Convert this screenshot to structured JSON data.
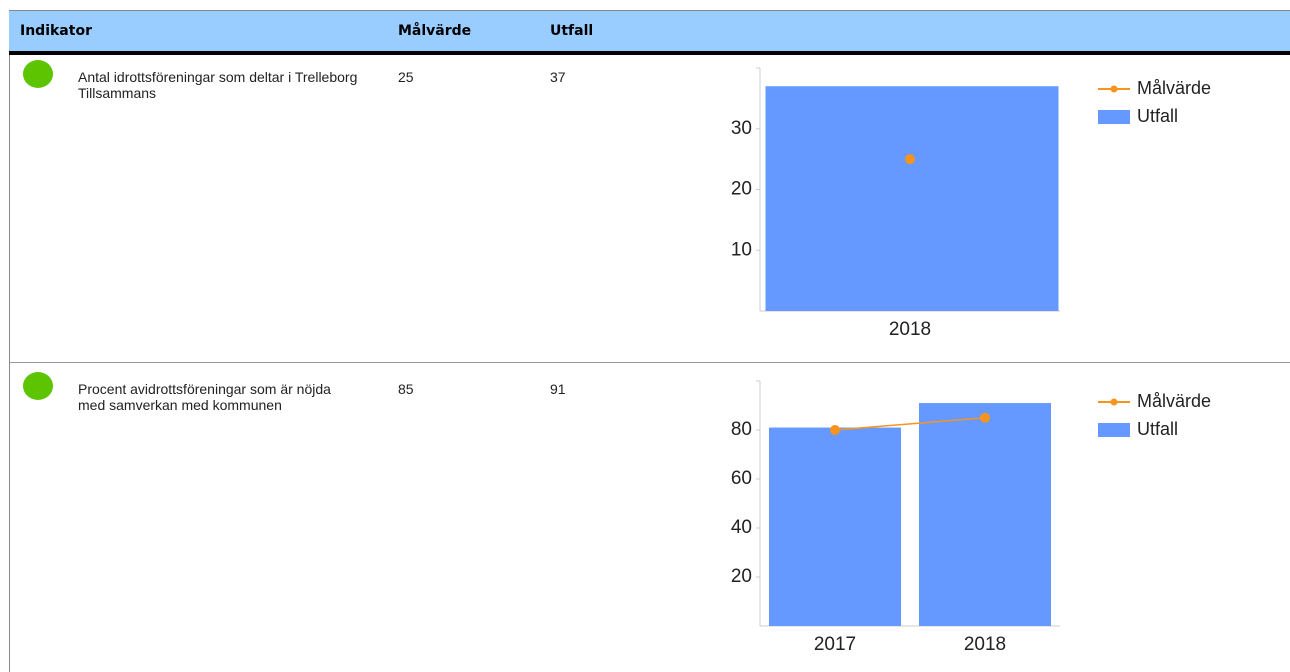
{
  "table": {
    "columns": [
      "Indikator",
      "Målvärde",
      "Utfall"
    ],
    "header_color": "#99ccff",
    "rows": [
      {
        "status_color": "#5cc400",
        "indicator": "Antal idrottsföreningar som deltar i Trelleborg Tillsammans",
        "target": 25,
        "outcome": 37,
        "chart": {
          "type": "bar",
          "categories": [
            "2018"
          ],
          "series": [
            {
              "name": "Målvärde",
              "type": "line",
              "color": "#f7941d",
              "values": [
                25
              ]
            },
            {
              "name": "Utfall",
              "type": "bar",
              "color": "#6699ff",
              "values": [
                37
              ]
            }
          ],
          "ylim": [
            0,
            40
          ],
          "yticks": [
            10,
            20,
            30
          ],
          "legend": "right"
        }
      },
      {
        "status_color": "#5cc400",
        "indicator": "Procent avidrottsföreningar som är nöjda med samverkan med kommunen",
        "target": 85,
        "outcome": 91,
        "chart": {
          "type": "bar",
          "categories": [
            "2017",
            "2018"
          ],
          "series": [
            {
              "name": "Målvärde",
              "type": "line",
              "color": "#f7941d",
              "values": [
                80,
                85
              ]
            },
            {
              "name": "Utfall",
              "type": "bar",
              "color": "#6699ff",
              "values": [
                81,
                91
              ]
            }
          ],
          "ylim": [
            0,
            100
          ],
          "yticks": [
            20,
            40,
            60,
            80
          ],
          "legend": "right"
        }
      }
    ]
  }
}
